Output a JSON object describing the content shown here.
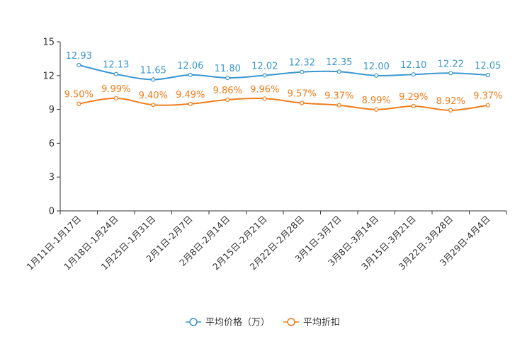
{
  "chart_data": {
    "type": "line",
    "title": "",
    "xlabel": "",
    "ylabel": "",
    "ylim": [
      0,
      15
    ],
    "yticks": [
      "0",
      "3",
      "6",
      "9",
      "12",
      "15"
    ],
    "categories": [
      "1月11日-1月17日",
      "1月18日-1月24日",
      "1月25日-1月31日",
      "2月1日-2月7日",
      "2月8日-2月14日",
      "2月15日-2月21日",
      "2月22日-2月28日",
      "3月1日-3月7日",
      "3月8日-3月14日",
      "3月15日-3月21日",
      "3月22日-3月28日",
      "3月29日-4月4日"
    ],
    "series": [
      {
        "name": "平均价格（万）",
        "color": "#3a97d0",
        "values": [
          12.93,
          12.13,
          11.65,
          12.06,
          11.8,
          12.02,
          12.32,
          12.35,
          12.0,
          12.1,
          12.22,
          12.05
        ],
        "labels": [
          "12.93",
          "12.13",
          "11.65",
          "12.06",
          "11.80",
          "12.02",
          "12.32",
          "12.35",
          "12.00",
          "12.10",
          "12.22",
          "12.05"
        ]
      },
      {
        "name": "平均折扣",
        "color": "#f07d1b",
        "values": [
          9.5,
          9.99,
          9.4,
          9.49,
          9.86,
          9.96,
          9.57,
          9.37,
          8.99,
          9.29,
          8.92,
          9.37
        ],
        "labels": [
          "9.50%",
          "9.99%",
          "9.40%",
          "9.49%",
          "9.86%",
          "9.96%",
          "9.57%",
          "9.37%",
          "8.99%",
          "9.29%",
          "8.92%",
          "9.37%"
        ]
      }
    ],
    "legend": "bottom-center",
    "grid": false
  }
}
